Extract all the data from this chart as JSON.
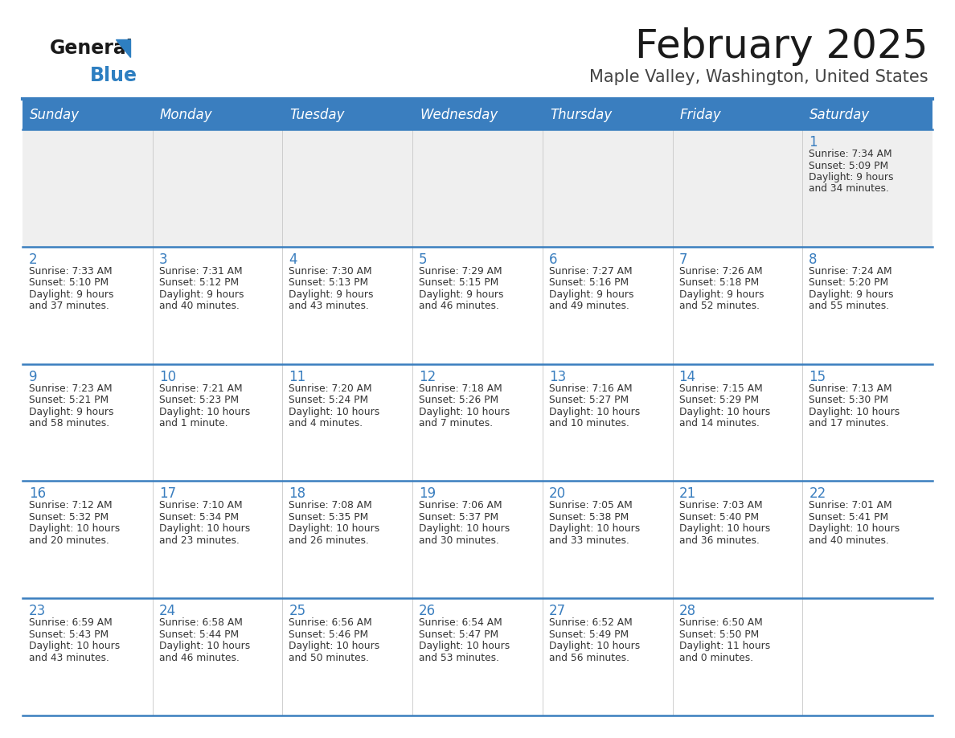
{
  "title": "February 2025",
  "subtitle": "Maple Valley, Washington, United States",
  "days_of_week": [
    "Sunday",
    "Monday",
    "Tuesday",
    "Wednesday",
    "Thursday",
    "Friday",
    "Saturday"
  ],
  "header_bg": "#3a7ebf",
  "header_text": "#ffffff",
  "cell_bg_light": "#efefef",
  "cell_bg_white": "#ffffff",
  "separator_color": "#3a7ebf",
  "text_color": "#333333",
  "title_color": "#1a1a1a",
  "subtitle_color": "#444444",
  "logo_general_color": "#1a1a1a",
  "logo_blue_color": "#2e7fc1",
  "weeks": [
    [
      {
        "day": null
      },
      {
        "day": null
      },
      {
        "day": null
      },
      {
        "day": null
      },
      {
        "day": null
      },
      {
        "day": null
      },
      {
        "day": 1,
        "sunrise": "7:34 AM",
        "sunset": "5:09 PM",
        "daylight": "9 hours and 34 minutes."
      }
    ],
    [
      {
        "day": 2,
        "sunrise": "7:33 AM",
        "sunset": "5:10 PM",
        "daylight": "9 hours and 37 minutes."
      },
      {
        "day": 3,
        "sunrise": "7:31 AM",
        "sunset": "5:12 PM",
        "daylight": "9 hours and 40 minutes."
      },
      {
        "day": 4,
        "sunrise": "7:30 AM",
        "sunset": "5:13 PM",
        "daylight": "9 hours and 43 minutes."
      },
      {
        "day": 5,
        "sunrise": "7:29 AM",
        "sunset": "5:15 PM",
        "daylight": "9 hours and 46 minutes."
      },
      {
        "day": 6,
        "sunrise": "7:27 AM",
        "sunset": "5:16 PM",
        "daylight": "9 hours and 49 minutes."
      },
      {
        "day": 7,
        "sunrise": "7:26 AM",
        "sunset": "5:18 PM",
        "daylight": "9 hours and 52 minutes."
      },
      {
        "day": 8,
        "sunrise": "7:24 AM",
        "sunset": "5:20 PM",
        "daylight": "9 hours and 55 minutes."
      }
    ],
    [
      {
        "day": 9,
        "sunrise": "7:23 AM",
        "sunset": "5:21 PM",
        "daylight": "9 hours and 58 minutes."
      },
      {
        "day": 10,
        "sunrise": "7:21 AM",
        "sunset": "5:23 PM",
        "daylight": "10 hours and 1 minute."
      },
      {
        "day": 11,
        "sunrise": "7:20 AM",
        "sunset": "5:24 PM",
        "daylight": "10 hours and 4 minutes."
      },
      {
        "day": 12,
        "sunrise": "7:18 AM",
        "sunset": "5:26 PM",
        "daylight": "10 hours and 7 minutes."
      },
      {
        "day": 13,
        "sunrise": "7:16 AM",
        "sunset": "5:27 PM",
        "daylight": "10 hours and 10 minutes."
      },
      {
        "day": 14,
        "sunrise": "7:15 AM",
        "sunset": "5:29 PM",
        "daylight": "10 hours and 14 minutes."
      },
      {
        "day": 15,
        "sunrise": "7:13 AM",
        "sunset": "5:30 PM",
        "daylight": "10 hours and 17 minutes."
      }
    ],
    [
      {
        "day": 16,
        "sunrise": "7:12 AM",
        "sunset": "5:32 PM",
        "daylight": "10 hours and 20 minutes."
      },
      {
        "day": 17,
        "sunrise": "7:10 AM",
        "sunset": "5:34 PM",
        "daylight": "10 hours and 23 minutes."
      },
      {
        "day": 18,
        "sunrise": "7:08 AM",
        "sunset": "5:35 PM",
        "daylight": "10 hours and 26 minutes."
      },
      {
        "day": 19,
        "sunrise": "7:06 AM",
        "sunset": "5:37 PM",
        "daylight": "10 hours and 30 minutes."
      },
      {
        "day": 20,
        "sunrise": "7:05 AM",
        "sunset": "5:38 PM",
        "daylight": "10 hours and 33 minutes."
      },
      {
        "day": 21,
        "sunrise": "7:03 AM",
        "sunset": "5:40 PM",
        "daylight": "10 hours and 36 minutes."
      },
      {
        "day": 22,
        "sunrise": "7:01 AM",
        "sunset": "5:41 PM",
        "daylight": "10 hours and 40 minutes."
      }
    ],
    [
      {
        "day": 23,
        "sunrise": "6:59 AM",
        "sunset": "5:43 PM",
        "daylight": "10 hours and 43 minutes."
      },
      {
        "day": 24,
        "sunrise": "6:58 AM",
        "sunset": "5:44 PM",
        "daylight": "10 hours and 46 minutes."
      },
      {
        "day": 25,
        "sunrise": "6:56 AM",
        "sunset": "5:46 PM",
        "daylight": "10 hours and 50 minutes."
      },
      {
        "day": 26,
        "sunrise": "6:54 AM",
        "sunset": "5:47 PM",
        "daylight": "10 hours and 53 minutes."
      },
      {
        "day": 27,
        "sunrise": "6:52 AM",
        "sunset": "5:49 PM",
        "daylight": "10 hours and 56 minutes."
      },
      {
        "day": 28,
        "sunrise": "6:50 AM",
        "sunset": "5:50 PM",
        "daylight": "11 hours and 0 minutes."
      },
      {
        "day": null
      }
    ]
  ]
}
